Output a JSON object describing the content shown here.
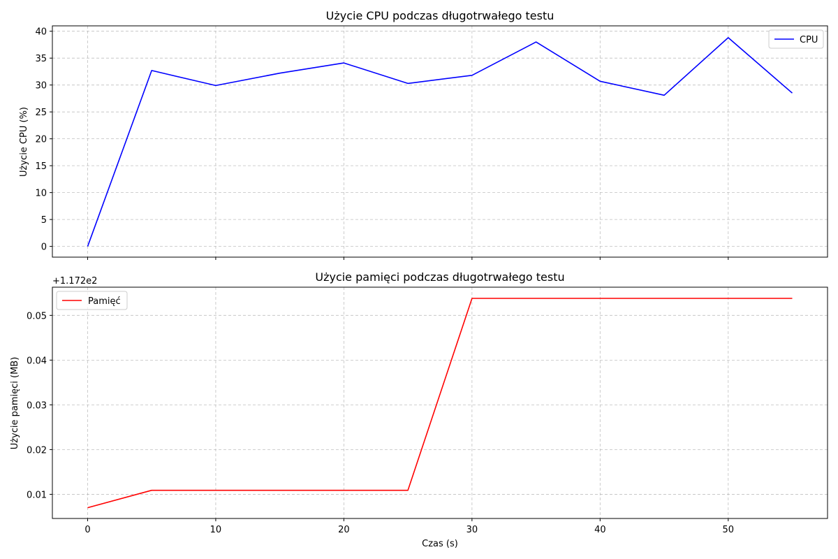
{
  "chart_data": [
    {
      "type": "line",
      "title": "Użycie CPU podczas długotrwałego testu",
      "xlabel": "",
      "ylabel": "Użycie CPU (%)",
      "x": [
        0,
        5,
        10,
        15,
        20,
        25,
        30,
        35,
        40,
        45,
        50,
        55
      ],
      "xlim": [
        -2.75,
        57.75
      ],
      "ylim": [
        -2,
        41
      ],
      "yticks": [
        0,
        5,
        10,
        15,
        20,
        25,
        30,
        35,
        40
      ],
      "xticks": [
        0,
        10,
        20,
        30,
        40,
        50
      ],
      "grid": true,
      "legend_position": "upper right",
      "series": [
        {
          "name": "CPU",
          "color": "#0000ff",
          "values": [
            0,
            32.7,
            29.9,
            32.2,
            34.1,
            30.3,
            31.8,
            38.0,
            30.7,
            28.1,
            38.8,
            28.5
          ]
        }
      ]
    },
    {
      "type": "line",
      "title": "Użycie pamięci podczas długotrwałego testu",
      "xlabel": "Czas (s)",
      "ylabel": "Użycie pamięci (MB)",
      "offset_text": "+1.172e2",
      "x": [
        0,
        5,
        10,
        15,
        20,
        25,
        30,
        35,
        40,
        45,
        50,
        55
      ],
      "xlim": [
        -2.75,
        57.75
      ],
      "ylim": [
        0.0046,
        0.0563
      ],
      "yticks": [
        0.01,
        0.02,
        0.03,
        0.04,
        0.05
      ],
      "ytick_labels": [
        "0.01",
        "0.02",
        "0.03",
        "0.04",
        "0.05"
      ],
      "xticks": [
        0,
        10,
        20,
        30,
        40,
        50
      ],
      "grid": true,
      "legend_position": "upper left",
      "series": [
        {
          "name": "Pamięć",
          "color": "#ff0000",
          "values": [
            0.007,
            0.0109,
            0.0109,
            0.0109,
            0.0109,
            0.0109,
            0.0538,
            0.0538,
            0.0538,
            0.0538,
            0.0538,
            0.0538
          ]
        }
      ]
    }
  ]
}
